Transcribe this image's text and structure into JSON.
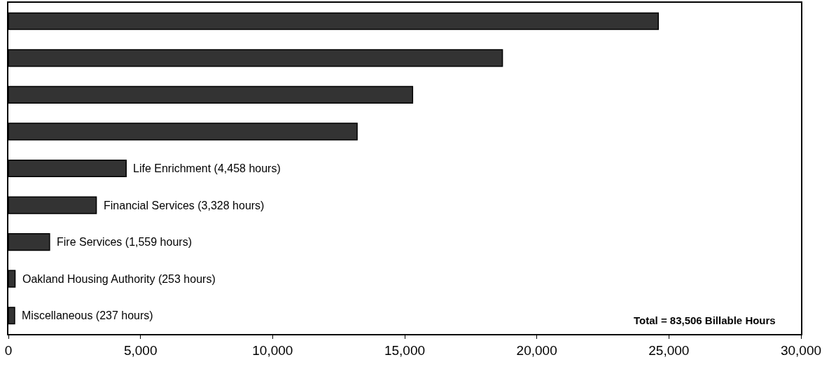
{
  "chart_data": {
    "type": "bar",
    "orientation": "horizontal",
    "categories": [
      null,
      null,
      null,
      null,
      "Life Enrichment (4,458 hours)",
      "Financial Services (3,328 hours)",
      "Fire Services (1,559 hours)",
      "Oakland Housing Authority (253 hours)",
      "Miscellaneous (237 hours)"
    ],
    "values": [
      24600,
      18700,
      15300,
      13200,
      4458,
      3328,
      1559,
      253,
      237
    ],
    "color": "#333333",
    "xlim": [
      0,
      30000
    ],
    "xticks": [
      {
        "value": 0,
        "label": "0"
      },
      {
        "value": 5000,
        "label": "5,000"
      },
      {
        "value": 10000,
        "label": "10,000"
      },
      {
        "value": 15000,
        "label": "15,000"
      },
      {
        "value": 20000,
        "label": "20,000"
      },
      {
        "value": 25000,
        "label": "25,000"
      },
      {
        "value": 30000,
        "label": "30,000"
      }
    ],
    "grid": false,
    "tick_labels": "x",
    "annotations": [
      "Total = 83,506 Billable Hours"
    ]
  }
}
